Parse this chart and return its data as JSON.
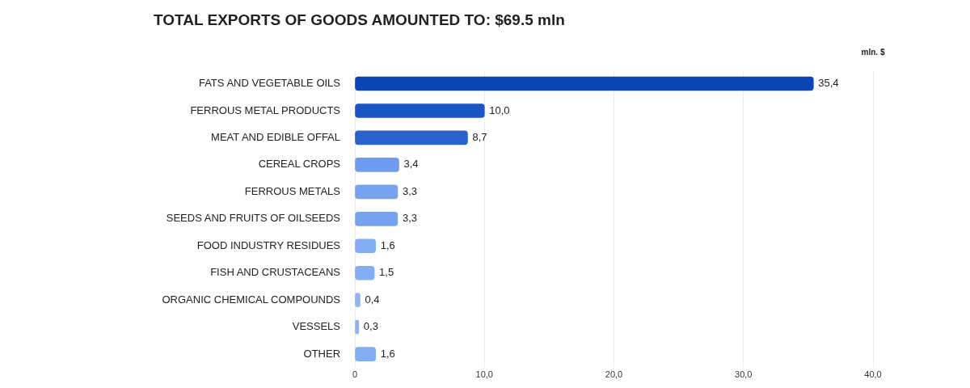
{
  "chart_data": {
    "type": "bar",
    "orientation": "horizontal",
    "title": "TOTAL EXPORTS OF GOODS AMOUNTED TO: $69.5 mln",
    "xlabel": "mln. $",
    "categories": [
      "FATS AND VEGETABLE OILS",
      "FERROUS METAL PRODUCTS",
      "MEAT AND EDIBLE OFFAL",
      "CEREAL CROPS",
      "FERROUS METALS",
      "SEEDS AND FRUITS OF OILSEEDS",
      "FOOD INDUSTRY RESIDUES",
      "FISH AND CRUSTACEANS",
      "ORGANIC CHEMICAL COMPOUNDS",
      "VESSELS",
      "OTHER"
    ],
    "values": [
      35.4,
      10.0,
      8.7,
      3.4,
      3.3,
      3.3,
      1.6,
      1.5,
      0.4,
      0.3,
      1.6
    ],
    "value_labels": [
      "35,4",
      "10,0",
      "8,7",
      "3,4",
      "3,3",
      "3,3",
      "1,6",
      "1,5",
      "0,4",
      "0,3",
      "1,6"
    ],
    "colors": [
      "#0b45b5",
      "#1a55c4",
      "#2a62cc",
      "#6f9cf0",
      "#76a2f0",
      "#76a2f0",
      "#84acf3",
      "#84acf3",
      "#8fb4f4",
      "#8fb4f4",
      "#84acf3"
    ],
    "xlim": [
      0,
      40
    ],
    "xticks": [
      0,
      {
        "value": 10,
        "label": "10,0"
      },
      {
        "value": 20,
        "label": "20,0"
      },
      {
        "value": 30,
        "label": "30,0"
      },
      {
        "value": 40,
        "label": "40,0"
      }
    ],
    "grid": "x",
    "legend": false
  }
}
